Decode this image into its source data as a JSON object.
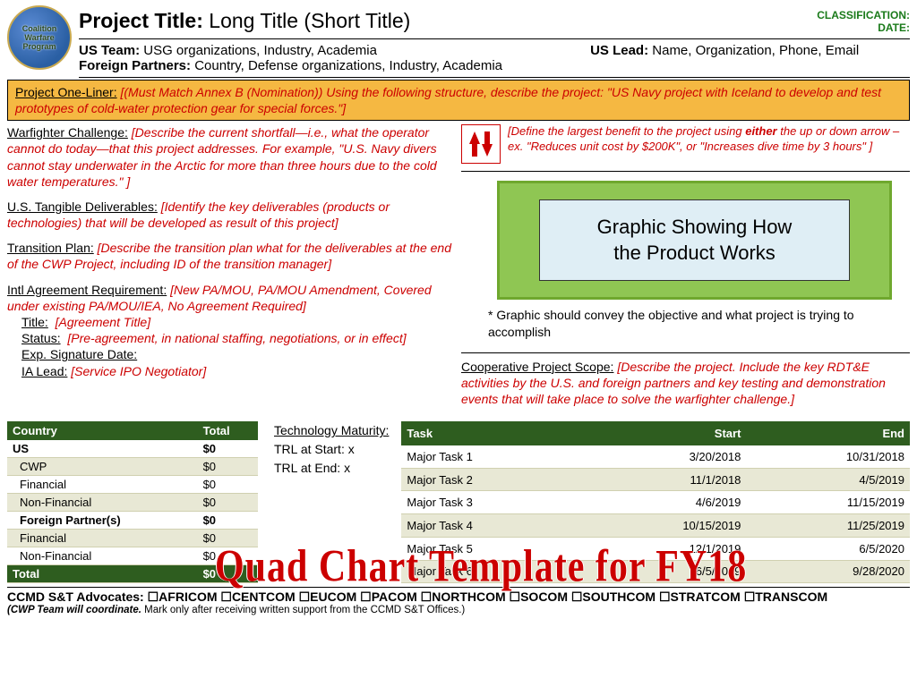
{
  "header": {
    "logo_lines": [
      "Coalition",
      "Warfare",
      "Program"
    ],
    "title_label": "Project Title:",
    "title_value": "Long Title (Short Title)",
    "classification": "CLASSIFICATION:",
    "date": "DATE:",
    "us_team_label": "US Team:",
    "us_team_value": "USG organizations, Industry, Academia",
    "foreign_partners_label": "Foreign Partners:",
    "foreign_partners_value": "Country,  Defense organizations, Industry, Academia",
    "us_lead_label": "US Lead:",
    "us_lead_value": "Name, Organization, Phone, Email"
  },
  "oneliner": {
    "label": "Project One-Liner:",
    "text": "[(Must Match Annex B (Nomination)) Using the following structure, describe the project: \"US Navy project with Iceland to develop and test prototypes of cold-water protection gear for special forces.\"]"
  },
  "left": {
    "warfighter_label": "Warfighter Challenge:",
    "warfighter_text": "[Describe the current shortfall—i.e., what the operator cannot do today—that this project addresses.  For example, \"U.S. Navy divers cannot stay underwater in the Arctic for more than three hours due to the cold water temperatures.\" ]",
    "deliverables_label": "U.S. Tangible Deliverables:",
    "deliverables_text": "[Identify the key deliverables (products or technologies) that will be developed as result of this project]",
    "transition_label": "Transition Plan:",
    "transition_text": "[Describe the transition plan what for the deliverables at the end of the CWP Project, including ID of the transition manager]",
    "intl_label": "Intl Agreement Requirement:",
    "intl_text": "[New PA/MOU, PA/MOU Amendment, Covered under existing  PA/MOU/IEA, No Agreement Required]",
    "ia_title_label": "Title:",
    "ia_title_text": "[Agreement Title]",
    "ia_status_label": "Status:",
    "ia_status_text": "[Pre-agreement, in national staffing, negotiations, or in effect]",
    "ia_exp_label": "Exp. Signature Date:",
    "ia_lead_label": "IA Lead:",
    "ia_lead_text": "[Service IPO Negotiator]"
  },
  "right": {
    "benefit_pre": "[Define the largest benefit to the project using ",
    "benefit_either": "either",
    "benefit_post": " the up or down arrow – ex. \"Reduces unit cost by $200K\",  or \"Increases dive time by 3 hours\" ]",
    "graphic_line1": "Graphic Showing How",
    "graphic_line2": "the Product Works",
    "graphic_note": "* Graphic should convey the objective and what project is trying to accomplish",
    "scope_label": "Cooperative Project Scope:",
    "scope_text": "[Describe the project. Include the key RDT&E activities by the U.S. and foreign partners and key testing and demonstration events that will take place to solve the warfighter challenge.]"
  },
  "funding": {
    "headers": [
      "Country",
      "Total"
    ],
    "rows": [
      {
        "label": "US",
        "val": "$0",
        "bold": true,
        "alt": false
      },
      {
        "label": "CWP",
        "val": "$0",
        "bold": false,
        "alt": true,
        "indent": true
      },
      {
        "label": "Financial",
        "val": "$0",
        "bold": false,
        "alt": false,
        "indent": true
      },
      {
        "label": "Non-Financial",
        "val": "$0",
        "bold": false,
        "alt": true,
        "indent": true
      },
      {
        "label": "Foreign Partner(s)",
        "val": "$0",
        "bold": true,
        "alt": false,
        "indent": true
      },
      {
        "label": "Financial",
        "val": "$0",
        "bold": false,
        "alt": true,
        "indent": true
      },
      {
        "label": "Non-Financial",
        "val": "$0",
        "bold": false,
        "alt": false,
        "indent": true
      }
    ],
    "total_label": "Total",
    "total_val": "$0"
  },
  "tech": {
    "label": "Technology Maturity:",
    "start": "TRL at Start:   x",
    "end": "TRL at End:    x"
  },
  "tasks": {
    "headers": [
      "Task",
      "Start",
      "End"
    ],
    "rows": [
      {
        "name": "Major Task 1",
        "start": "3/20/2018",
        "end": "10/31/2018",
        "alt": false
      },
      {
        "name": "Major Task 2",
        "start": "11/1/2018",
        "end": "4/5/2019",
        "alt": true
      },
      {
        "name": "Major Task 3",
        "start": "4/6/2019",
        "end": "11/15/2019",
        "alt": false
      },
      {
        "name": "Major Task 4",
        "start": "10/15/2019",
        "end": "11/25/2019",
        "alt": true
      },
      {
        "name": "Major Task 5",
        "start": "12/1/2019",
        "end": "6/5/2020",
        "alt": false
      },
      {
        "name": "Major Task 6",
        "start": "6/5/2019",
        "end": "9/28/2020",
        "alt": true
      }
    ]
  },
  "watermark": "Quad Chart Template for FY18",
  "footer": {
    "advocates_label": "CCMD S&T Advocates:",
    "commands": [
      "AFRICOM",
      "CENTCOM",
      "EUCOM",
      "PACOM",
      "NORTHCOM",
      "SOCOM",
      "SOUTHCOM",
      "STRATCOM",
      "TRANSCOM"
    ],
    "sub_bold": "(CWP Team will coordinate.",
    "sub_rest": " Mark only after receiving written support from the CCMD S&T Offices.)"
  },
  "colors": {
    "red": "#cc0000",
    "green_header": "#2e5d1f",
    "oneliner_bg": "#f5b842",
    "graphic_border": "#6fa82e",
    "graphic_bg": "#8fc653",
    "graphic_inner": "#dfeef5"
  }
}
